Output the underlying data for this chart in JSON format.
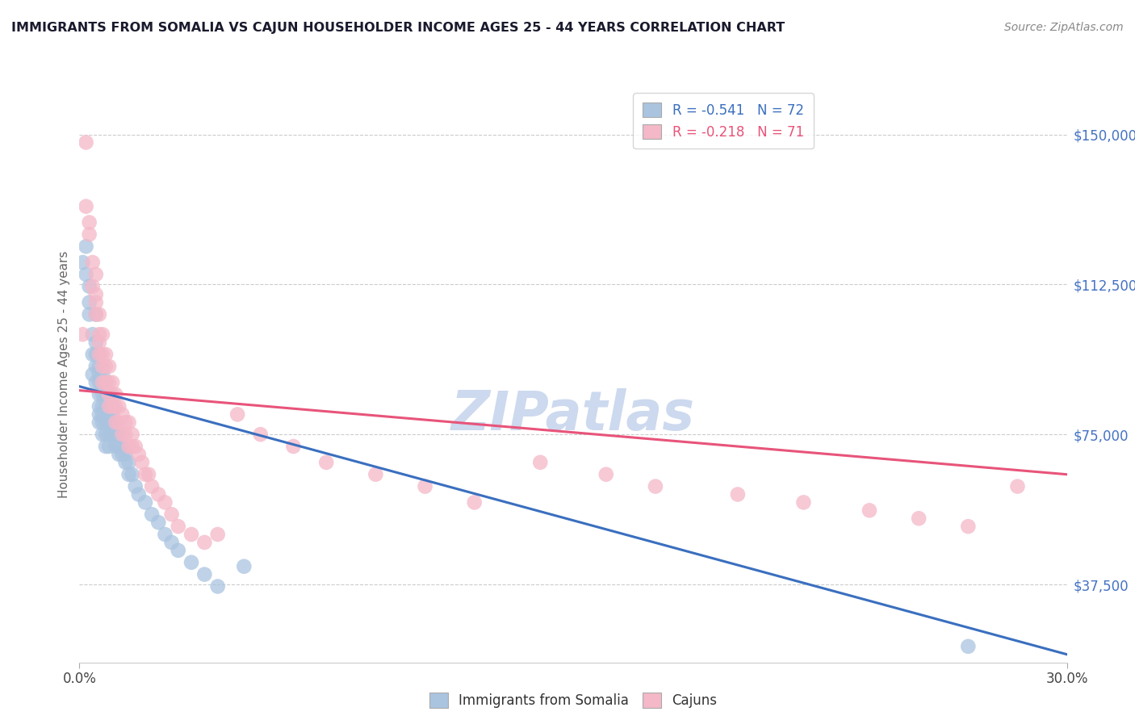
{
  "title": "IMMIGRANTS FROM SOMALIA VS CAJUN HOUSEHOLDER INCOME AGES 25 - 44 YEARS CORRELATION CHART",
  "source": "Source: ZipAtlas.com",
  "ylabel_label": "Householder Income Ages 25 - 44 years",
  "legend_entry1": "R = -0.541   N = 72",
  "legend_entry2": "R = -0.218   N = 71",
  "legend_label1": "Immigrants from Somalia",
  "legend_label2": "Cajuns",
  "xmin": 0.0,
  "xmax": 0.3,
  "ymin": 18000,
  "ymax": 162000,
  "blue_color": "#aac4e0",
  "pink_color": "#f4b8c8",
  "blue_line_color": "#3a6fbf",
  "pink_line_color": "#e8547a",
  "title_color": "#1a1a2e",
  "watermark_color": "#ccd9ee",
  "right_tick_color": "#4472c4",
  "somalia_x": [
    0.001,
    0.002,
    0.002,
    0.003,
    0.003,
    0.003,
    0.004,
    0.004,
    0.004,
    0.005,
    0.005,
    0.005,
    0.005,
    0.005,
    0.006,
    0.006,
    0.006,
    0.006,
    0.006,
    0.006,
    0.006,
    0.006,
    0.007,
    0.007,
    0.007,
    0.007,
    0.007,
    0.007,
    0.007,
    0.008,
    0.008,
    0.008,
    0.008,
    0.008,
    0.008,
    0.008,
    0.009,
    0.009,
    0.009,
    0.009,
    0.009,
    0.009,
    0.01,
    0.01,
    0.01,
    0.01,
    0.011,
    0.011,
    0.011,
    0.012,
    0.012,
    0.012,
    0.013,
    0.013,
    0.014,
    0.014,
    0.015,
    0.015,
    0.016,
    0.017,
    0.018,
    0.02,
    0.022,
    0.024,
    0.026,
    0.028,
    0.03,
    0.034,
    0.038,
    0.042,
    0.05,
    0.27
  ],
  "somalia_y": [
    118000,
    122000,
    115000,
    112000,
    108000,
    105000,
    100000,
    95000,
    90000,
    105000,
    98000,
    95000,
    92000,
    88000,
    95000,
    92000,
    90000,
    88000,
    85000,
    82000,
    80000,
    78000,
    90000,
    88000,
    85000,
    82000,
    80000,
    78000,
    75000,
    88000,
    85000,
    82000,
    80000,
    78000,
    75000,
    72000,
    85000,
    82000,
    80000,
    78000,
    75000,
    72000,
    82000,
    80000,
    78000,
    75000,
    78000,
    75000,
    72000,
    75000,
    72000,
    70000,
    72000,
    70000,
    70000,
    68000,
    68000,
    65000,
    65000,
    62000,
    60000,
    58000,
    55000,
    53000,
    50000,
    48000,
    46000,
    43000,
    40000,
    37000,
    42000,
    22000
  ],
  "cajun_x": [
    0.001,
    0.002,
    0.002,
    0.003,
    0.003,
    0.004,
    0.004,
    0.005,
    0.005,
    0.005,
    0.005,
    0.006,
    0.006,
    0.006,
    0.006,
    0.007,
    0.007,
    0.007,
    0.007,
    0.008,
    0.008,
    0.008,
    0.009,
    0.009,
    0.009,
    0.009,
    0.01,
    0.01,
    0.01,
    0.011,
    0.011,
    0.011,
    0.012,
    0.012,
    0.013,
    0.013,
    0.014,
    0.014,
    0.015,
    0.015,
    0.016,
    0.016,
    0.017,
    0.018,
    0.019,
    0.02,
    0.021,
    0.022,
    0.024,
    0.026,
    0.028,
    0.03,
    0.034,
    0.038,
    0.042,
    0.048,
    0.055,
    0.065,
    0.075,
    0.09,
    0.105,
    0.12,
    0.14,
    0.16,
    0.175,
    0.2,
    0.22,
    0.24,
    0.255,
    0.27,
    0.285
  ],
  "cajun_y": [
    100000,
    148000,
    132000,
    125000,
    128000,
    118000,
    112000,
    108000,
    105000,
    115000,
    110000,
    100000,
    105000,
    98000,
    95000,
    100000,
    95000,
    92000,
    88000,
    95000,
    92000,
    88000,
    92000,
    88000,
    85000,
    82000,
    88000,
    85000,
    82000,
    85000,
    82000,
    78000,
    82000,
    78000,
    80000,
    75000,
    78000,
    75000,
    78000,
    72000,
    75000,
    72000,
    72000,
    70000,
    68000,
    65000,
    65000,
    62000,
    60000,
    58000,
    55000,
    52000,
    50000,
    48000,
    50000,
    80000,
    75000,
    72000,
    68000,
    65000,
    62000,
    58000,
    68000,
    65000,
    62000,
    60000,
    58000,
    56000,
    54000,
    52000,
    62000
  ],
  "blue_trendline_x": [
    0.0,
    0.3
  ],
  "blue_trendline_y": [
    87000,
    20000
  ],
  "pink_trendline_x": [
    0.0,
    0.3
  ],
  "pink_trendline_y": [
    86000,
    65000
  ]
}
